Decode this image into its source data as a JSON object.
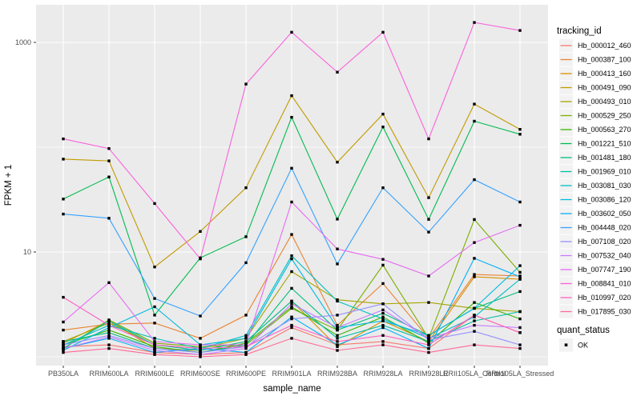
{
  "chart_data": {
    "type": "line",
    "title": "",
    "xlabel": "sample_name",
    "ylabel": "FPKM + 1",
    "grid": "on",
    "panel_bg": "#EBEBEB",
    "grid_color": "#FFFFFF",
    "point_color": "#000000",
    "point_shape": "square",
    "y_axis": {
      "scale": "log10",
      "major_ticks": [
        {
          "label": "10",
          "value": 10
        },
        {
          "label": "1000",
          "value": 1000
        }
      ],
      "minor_gridlines": [
        1,
        100
      ],
      "range": [
        0.85,
        2400
      ]
    },
    "categories": [
      "PB350LA",
      "RRIM600LA",
      "RRIM600LE",
      "RRIM600SE",
      "RRIM600PE",
      "RRIM901LA",
      "RRIM928BA",
      "RRIM928LA",
      "RRIM928LE",
      "RRII105LA_Control",
      "RRII105LA_Stressed"
    ],
    "legend": {
      "series_title": "tracking_id",
      "status_title": "quant_status",
      "status_value": "OK",
      "position": "right",
      "key_bg": "#F2F2F2"
    },
    "series": [
      {
        "name": "Hb_000012_460",
        "color": "#F8766D",
        "values": [
          1.25,
          1.3,
          1.1,
          1.05,
          1.1,
          1.9,
          1.3,
          1.4,
          1.2,
          2.5,
          1.7
        ]
      },
      {
        "name": "Hb_000387_100",
        "color": "#EA8331",
        "values": [
          1.8,
          2.05,
          2.1,
          1.5,
          2.5,
          14.7,
          2.0,
          5.0,
          1.5,
          6.1,
          5.9
        ]
      },
      {
        "name": "Hb_000413_160",
        "color": "#D89000",
        "values": [
          1.35,
          2.2,
          1.2,
          1.15,
          1.4,
          3.4,
          1.25,
          2.2,
          1.4,
          5.8,
          5.5
        ]
      },
      {
        "name": "Hb_000491_090",
        "color": "#C09B00",
        "values": [
          77,
          74,
          7.2,
          15.7,
          41,
          310,
          72,
          207,
          33,
          258,
          148
        ]
      },
      {
        "name": "Hb_000493_010",
        "color": "#A3A500",
        "values": [
          1.4,
          2.1,
          1.3,
          1.2,
          1.5,
          6.5,
          3.5,
          3.2,
          3.3,
          2.9,
          2.7
        ]
      },
      {
        "name": "Hb_000529_250",
        "color": "#7CAE00",
        "values": [
          1.2,
          2.25,
          1.35,
          1.25,
          1.3,
          2.9,
          1.8,
          7.5,
          1.5,
          20.4,
          6.4
        ]
      },
      {
        "name": "Hb_000563_270",
        "color": "#39B600",
        "values": [
          1.3,
          1.8,
          1.25,
          1.1,
          1.35,
          3.0,
          1.6,
          2.4,
          1.35,
          3.3,
          2.3
        ]
      },
      {
        "name": "Hb_001221_510",
        "color": "#00BB4E",
        "values": [
          32,
          52,
          2.5,
          8.8,
          14,
          193,
          20.6,
          156,
          20.5,
          177,
          133
        ]
      },
      {
        "name": "Hb_001481_180",
        "color": "#00BF7D",
        "values": [
          1.4,
          1.7,
          1.2,
          1.1,
          1.3,
          4.5,
          1.8,
          2.6,
          1.6,
          2.9,
          4.2
        ]
      },
      {
        "name": "Hb_001969_010",
        "color": "#00C1A3",
        "values": [
          1.2,
          2.2,
          1.3,
          1.15,
          1.4,
          3.4,
          1.5,
          2.0,
          1.4,
          2.2,
          2.7
        ]
      },
      {
        "name": "Hb_003081_030",
        "color": "#00BFC4",
        "values": [
          1.3,
          2.0,
          1.5,
          1.2,
          1.6,
          9.2,
          3.4,
          2.3,
          1.5,
          2.4,
          5.5
        ]
      },
      {
        "name": "Hb_003086_120",
        "color": "#00BAE0",
        "values": [
          1.15,
          1.9,
          3.0,
          1.3,
          1.5,
          8.6,
          1.9,
          2.2,
          1.6,
          2.9,
          7.4
        ]
      },
      {
        "name": "Hb_003602_050",
        "color": "#00B0F6",
        "values": [
          1.2,
          1.5,
          1.1,
          1.2,
          1.1,
          2.4,
          1.3,
          1.9,
          1.2,
          8.7,
          5.8
        ]
      },
      {
        "name": "Hb_004448_020",
        "color": "#35A2FF",
        "values": [
          23,
          21,
          3.6,
          2.45,
          7.9,
          63,
          7.7,
          41,
          15.5,
          49,
          30
        ]
      },
      {
        "name": "Hb_007108_020",
        "color": "#9590FF",
        "values": [
          1.3,
          1.6,
          1.2,
          1.1,
          1.25,
          2.3,
          2.5,
          3.2,
          1.45,
          1.75,
          1.3
        ]
      },
      {
        "name": "Hb_007532_040",
        "color": "#C77CFF",
        "values": [
          1.2,
          1.55,
          1.15,
          1.05,
          1.2,
          3.2,
          1.9,
          2.8,
          1.5,
          2.0,
          1.9
        ]
      },
      {
        "name": "Hb_007747_190",
        "color": "#E76BF3",
        "values": [
          2.15,
          5.1,
          1.4,
          1.3,
          1.3,
          30,
          10.7,
          8.5,
          5.9,
          12.3,
          18
        ]
      },
      {
        "name": "Hb_008841_010",
        "color": "#FA62DB",
        "values": [
          120,
          97,
          29,
          8.6,
          400,
          1250,
          520,
          1250,
          120,
          1550,
          1300
        ]
      },
      {
        "name": "Hb_010997_020",
        "color": "#FF61C3",
        "values": [
          3.7,
          2.0,
          1.3,
          1.2,
          1.25,
          2.0,
          1.4,
          1.6,
          1.3,
          2.5,
          1.7
        ]
      },
      {
        "name": "Hb_017895_030",
        "color": "#FF6A98",
        "values": [
          1.1,
          1.2,
          1.05,
          1.0,
          1.05,
          1.5,
          1.15,
          1.3,
          1.1,
          1.3,
          1.2
        ]
      }
    ]
  }
}
